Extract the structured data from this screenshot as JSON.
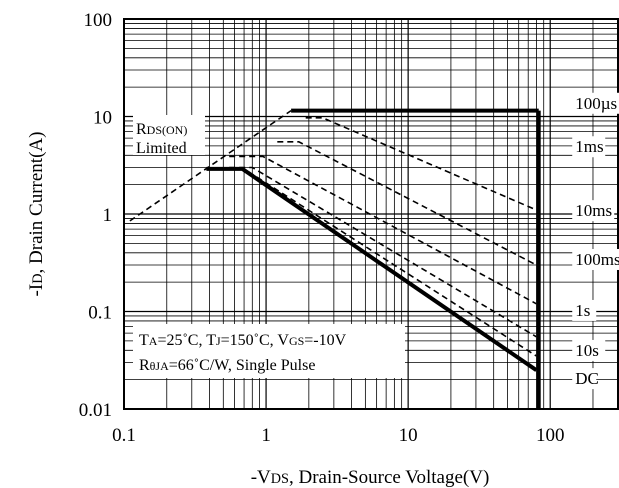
{
  "chart_data": {
    "type": "line",
    "title": "",
    "xscale": "log",
    "yscale": "log",
    "xlim": [
      0.1,
      300
    ],
    "ylim": [
      0.01,
      100
    ],
    "grid": true,
    "xlabel": {
      "prefix": "-V",
      "sub": "DS",
      "suffix": ", Drain-Source Voltage(V)"
    },
    "ylabel": {
      "prefix": "-I",
      "sub": "D",
      "suffix": ", Drain Current(A)"
    },
    "xticks": [
      {
        "value": 0.1,
        "label": "0.1"
      },
      {
        "value": 1,
        "label": "1"
      },
      {
        "value": 10,
        "label": "10"
      },
      {
        "value": 100,
        "label": "100"
      }
    ],
    "yticks": [
      {
        "value": 0.01,
        "label": "0.01"
      },
      {
        "value": 0.1,
        "label": "0.1"
      },
      {
        "value": 1,
        "label": "1"
      },
      {
        "value": 10,
        "label": "10"
      },
      {
        "value": 100,
        "label": "100"
      }
    ],
    "series": [
      {
        "name": "RDS(ON) Limited",
        "style": "dashed",
        "points": [
          [
            0.11,
            0.85
          ],
          [
            1.5,
            11.5
          ]
        ]
      },
      {
        "name": "100µs",
        "style": "thick",
        "points": [
          [
            1.5,
            11.5
          ],
          [
            83,
            11.5
          ]
        ]
      },
      {
        "name": "1ms",
        "style": "dashed",
        "points": [
          [
            1.9,
            9.7
          ],
          [
            2.5,
            9.7
          ],
          [
            80,
            1.1
          ]
        ]
      },
      {
        "name": "10ms",
        "style": "dashed",
        "points": [
          [
            1.2,
            5.5
          ],
          [
            1.7,
            5.5
          ],
          [
            80,
            0.3
          ]
        ]
      },
      {
        "name": "100ms",
        "style": "dashed",
        "points": [
          [
            0.55,
            3.9
          ],
          [
            0.95,
            3.9
          ],
          [
            80,
            0.12
          ]
        ]
      },
      {
        "name": "1s",
        "style": "dashed",
        "points": [
          [
            0.55,
            3.0
          ],
          [
            0.8,
            3.0
          ],
          [
            80,
            0.055
          ]
        ]
      },
      {
        "name": "10s",
        "style": "dashed",
        "points": [
          [
            0.55,
            2.9
          ],
          [
            0.7,
            2.9
          ],
          [
            80,
            0.035
          ]
        ]
      },
      {
        "name": "DC",
        "style": "thick",
        "points": [
          [
            0.38,
            2.9
          ],
          [
            0.68,
            2.9
          ],
          [
            80,
            0.025
          ]
        ]
      },
      {
        "name": "boundary",
        "style": "thick",
        "points": [
          [
            83,
            11.5
          ],
          [
            83,
            0.01
          ]
        ]
      }
    ],
    "curve_labels": [
      {
        "text": "100µs",
        "x": 150,
        "y": 12
      },
      {
        "text": "1ms",
        "x": 150,
        "y": 4.3
      },
      {
        "text": "10ms",
        "x": 150,
        "y": 0.95
      },
      {
        "text": "100ms",
        "x": 150,
        "y": 0.3
      },
      {
        "text": "1s",
        "x": 150,
        "y": 0.09
      },
      {
        "text": "10s",
        "x": 150,
        "y": 0.035
      },
      {
        "text": "DC",
        "x": 150,
        "y": 0.018
      }
    ],
    "annotations": {
      "rds": {
        "prefix": "R",
        "sub": "DS(ON)",
        "line2": "Limited"
      },
      "cond": {
        "line1": [
          {
            "t": "T"
          },
          {
            "t": "A",
            "sub": true
          },
          {
            "t": "=25˚C, T"
          },
          {
            "t": "J",
            "sub": true
          },
          {
            "t": "=150˚C, V"
          },
          {
            "t": "GS",
            "sub": true
          },
          {
            "t": "=-10V"
          }
        ],
        "line2": [
          {
            "t": "R"
          },
          {
            "t": "θJA",
            "sub": true
          },
          {
            "t": "=66˚C/W, Single Pulse"
          }
        ]
      }
    }
  }
}
